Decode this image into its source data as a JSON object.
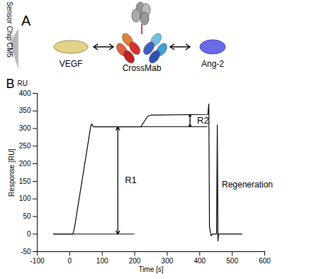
{
  "diagram": {
    "label": "A",
    "nodes": [
      {
        "label": "Sensor Chip CM5"
      },
      {
        "label": "VEGF"
      },
      {
        "label": "CrossMab"
      },
      {
        "label": "Ang-2"
      }
    ]
  },
  "chart_data": {
    "type": "line",
    "panel_label": "B",
    "unit_label": "RU",
    "xlabel": "Time [s]",
    "ylabel": "Response [RU]",
    "x": [
      -50,
      10,
      15,
      65,
      68,
      72,
      220,
      222,
      240,
      250,
      425,
      428,
      430,
      435,
      440,
      452,
      454,
      456,
      458,
      530
    ],
    "values": [
      0,
      0,
      20,
      308,
      313,
      305,
      305,
      310,
      335,
      338,
      340,
      370,
      20,
      -5,
      0,
      0,
      310,
      -20,
      0,
      0
    ],
    "color": "#000000",
    "xlim": [
      -100,
      600
    ],
    "xticks": [
      -100,
      0,
      100,
      200,
      300,
      400,
      500,
      600
    ],
    "ylim": [
      -50,
      400
    ],
    "yticks": [
      -50,
      0,
      50,
      100,
      150,
      200,
      250,
      300,
      350,
      400
    ],
    "grid": false,
    "reference_lines": [
      {
        "y": 0,
        "x": [
          -50,
          200
        ],
        "line_style": "dashed"
      },
      {
        "y": 305,
        "x": [
          220,
          425
        ],
        "line_style": "dashed"
      }
    ],
    "annotations": [
      {
        "text": "R1",
        "x": 148,
        "y": [
          0,
          305
        ]
      },
      {
        "text": "R2",
        "x": 370,
        "y": [
          305,
          340
        ]
      },
      {
        "text": "Regeneration",
        "x": 468,
        "y": 140
      }
    ]
  }
}
